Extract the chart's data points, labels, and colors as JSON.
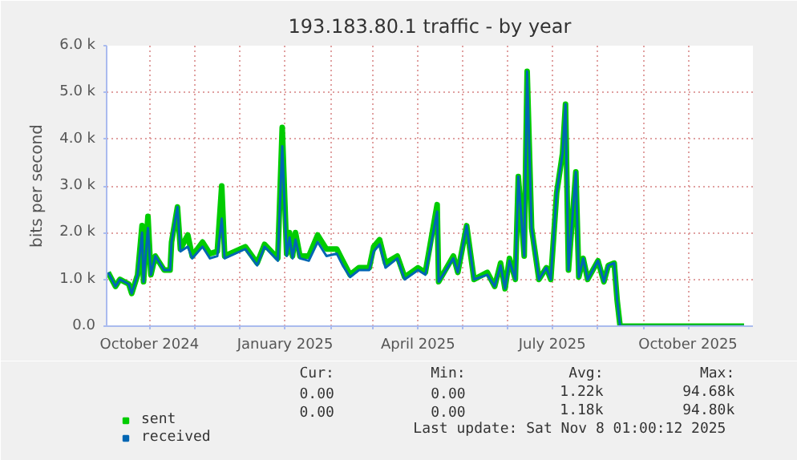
{
  "chart_data": {
    "type": "line",
    "title": "193.183.80.1 traffic - by year",
    "ylabel": "bits per second",
    "x": [
      "2024-09-03",
      "2024-09-08",
      "2024-09-11",
      "2024-09-17",
      "2024-09-19",
      "2024-09-23",
      "2024-09-26",
      "2024-09-27",
      "2024-09-30",
      "2024-10-02",
      "2024-10-05",
      "2024-10-11",
      "2024-10-15",
      "2024-10-16",
      "2024-10-20",
      "2024-10-22",
      "2024-10-27",
      "2024-10-30",
      "2024-11-06",
      "2024-11-11",
      "2024-11-16",
      "2024-11-19",
      "2024-11-21",
      "2024-12-05",
      "2024-12-13",
      "2024-12-18",
      "2024-12-27",
      "2024-12-30",
      "2025-01-02",
      "2025-01-04",
      "2025-01-06",
      "2025-01-08",
      "2025-01-11",
      "2025-01-17",
      "2025-01-23",
      "2025-01-29",
      "2025-02-05",
      "2025-02-09",
      "2025-02-14",
      "2025-02-20",
      "2025-02-27",
      "2025-03-02",
      "2025-03-06",
      "2025-03-10",
      "2025-03-18",
      "2025-03-23",
      "2025-04-01",
      "2025-04-06",
      "2025-04-14",
      "2025-04-15",
      "2025-04-25",
      "2025-04-28",
      "2025-05-04",
      "2025-05-09",
      "2025-05-18",
      "2025-05-23",
      "2025-05-27",
      "2025-05-30",
      "2025-06-02",
      "2025-06-06",
      "2025-06-08",
      "2025-06-12",
      "2025-06-14",
      "2025-06-17",
      "2025-06-22",
      "2025-06-27",
      "2025-06-30",
      "2025-07-04",
      "2025-07-08",
      "2025-07-10",
      "2025-07-12",
      "2025-07-17",
      "2025-07-19",
      "2025-07-22",
      "2025-07-25",
      "2025-08-01",
      "2025-08-05",
      "2025-08-08",
      "2025-08-12",
      "2025-08-14",
      "2025-08-16",
      "2025-11-08"
    ],
    "series": [
      {
        "name": "sent",
        "color": "#00cc00",
        "values": [
          1150,
          850,
          1000,
          900,
          700,
          1100,
          2150,
          950,
          2350,
          1100,
          1500,
          1200,
          1200,
          1800,
          2550,
          1650,
          1950,
          1500,
          1800,
          1550,
          1600,
          3000,
          1500,
          1700,
          1350,
          1750,
          1450,
          4250,
          1550,
          2000,
          1500,
          2000,
          1500,
          1500,
          1950,
          1650,
          1650,
          1400,
          1100,
          1250,
          1250,
          1700,
          1850,
          1350,
          1500,
          1050,
          1250,
          1150,
          2600,
          950,
          1500,
          1150,
          2150,
          1000,
          1150,
          850,
          1350,
          800,
          1450,
          1000,
          3200,
          1500,
          5450,
          2100,
          1000,
          1250,
          1000,
          2850,
          3700,
          4750,
          1200,
          3300,
          1050,
          1450,
          1000,
          1400,
          950,
          1300,
          1350,
          550,
          0,
          0
        ]
      },
      {
        "name": "received",
        "color": "#0066b3",
        "values": [
          1150,
          850,
          1000,
          900,
          700,
          1100,
          2000,
          950,
          2100,
          1100,
          1500,
          1200,
          1200,
          1800,
          2550,
          1600,
          1700,
          1450,
          1700,
          1450,
          1500,
          2300,
          1450,
          1650,
          1300,
          1700,
          1400,
          3850,
          1500,
          1900,
          1450,
          1850,
          1450,
          1400,
          1800,
          1500,
          1550,
          1300,
          1050,
          1200,
          1200,
          1600,
          1750,
          1250,
          1450,
          1000,
          1200,
          1100,
          2450,
          950,
          1450,
          1150,
          2150,
          1000,
          1100,
          850,
          1300,
          800,
          1400,
          1000,
          3200,
          1500,
          5450,
          2100,
          1000,
          1250,
          1000,
          2850,
          3700,
          4750,
          1200,
          3300,
          1050,
          1450,
          1000,
          1400,
          950,
          1300,
          1350,
          550,
          0,
          0
        ]
      }
    ],
    "xlim": [
      "2024-09-02",
      "2025-11-14"
    ],
    "xticks": [
      {
        "value": "2024-10-01",
        "label": "October 2024"
      },
      {
        "value": "2024-11-01",
        "label": null
      },
      {
        "value": "2024-12-01",
        "label": null
      },
      {
        "value": "2025-01-01",
        "label": "January 2025"
      },
      {
        "value": "2025-02-01",
        "label": null
      },
      {
        "value": "2025-03-01",
        "label": null
      },
      {
        "value": "2025-04-01",
        "label": "April 2025"
      },
      {
        "value": "2025-05-01",
        "label": null
      },
      {
        "value": "2025-06-01",
        "label": null
      },
      {
        "value": "2025-07-01",
        "label": "July 2025"
      },
      {
        "value": "2025-08-01",
        "label": null
      },
      {
        "value": "2025-09-01",
        "label": null
      },
      {
        "value": "2025-10-01",
        "label": "October 2025"
      }
    ],
    "ylim": [
      0,
      6000
    ],
    "yticks": [
      {
        "value": 0,
        "label": "0.0"
      },
      {
        "value": 1000,
        "label": "1.0 k"
      },
      {
        "value": 2000,
        "label": "2.0 k"
      },
      {
        "value": 3000,
        "label": "3.0 k"
      },
      {
        "value": 4000,
        "label": "4.0 k"
      },
      {
        "value": 5000,
        "label": "5.0 k"
      },
      {
        "value": 6000,
        "label": "6.0 k"
      }
    ],
    "grid": true,
    "legend": "bottom left",
    "marker": "none",
    "line_style": "solid",
    "annotations": [
      "Cur:",
      "Min:",
      "Avg:",
      "Max:",
      "0.00",
      "0.00",
      "1.22k",
      "94.68k",
      "0.00",
      "0.00",
      "1.18k",
      "94.80k",
      "Last update: Sat Nov  8 01:00:12 2025"
    ]
  }
}
